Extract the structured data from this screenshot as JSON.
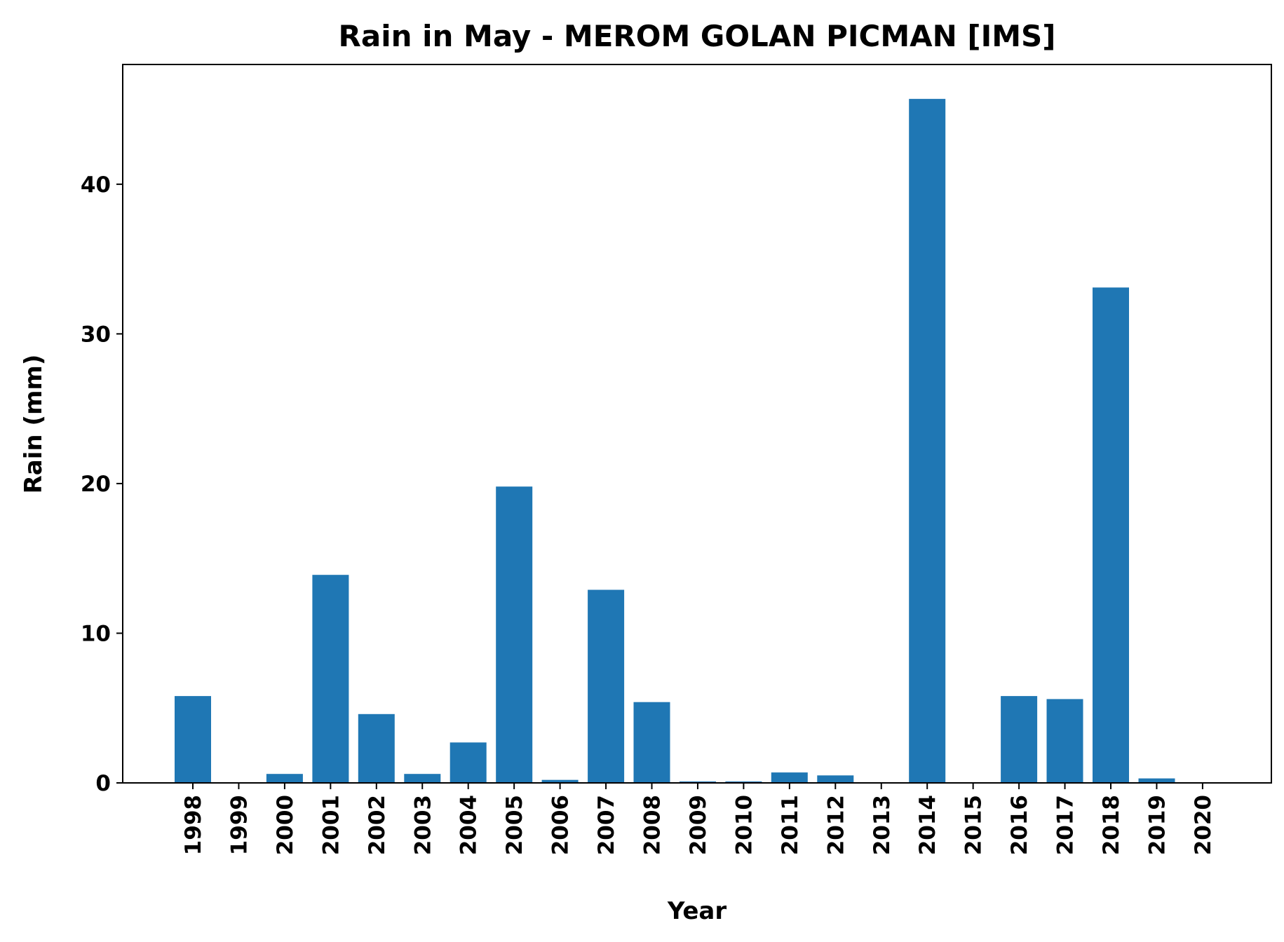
{
  "chart_data": {
    "type": "bar",
    "title": "Rain in May - MEROM GOLAN PICMAN [IMS]",
    "xlabel": "Year",
    "ylabel": "Rain (mm)",
    "categories": [
      "1998",
      "1999",
      "2000",
      "2001",
      "2002",
      "2003",
      "2004",
      "2005",
      "2006",
      "2007",
      "2008",
      "2009",
      "2010",
      "2011",
      "2012",
      "2013",
      "2014",
      "2015",
      "2016",
      "2017",
      "2018",
      "2019",
      "2020"
    ],
    "values": [
      5.8,
      0.0,
      0.6,
      13.9,
      4.6,
      0.6,
      2.7,
      19.8,
      0.2,
      12.9,
      5.4,
      0.1,
      0.1,
      0.7,
      0.5,
      0.0,
      45.7,
      0.0,
      5.8,
      5.6,
      33.1,
      0.3,
      0.0
    ],
    "ylim": [
      0,
      48
    ],
    "yticks": [
      0,
      10,
      20,
      30,
      40
    ],
    "grid": false,
    "bar_color": "#1f77b4"
  }
}
